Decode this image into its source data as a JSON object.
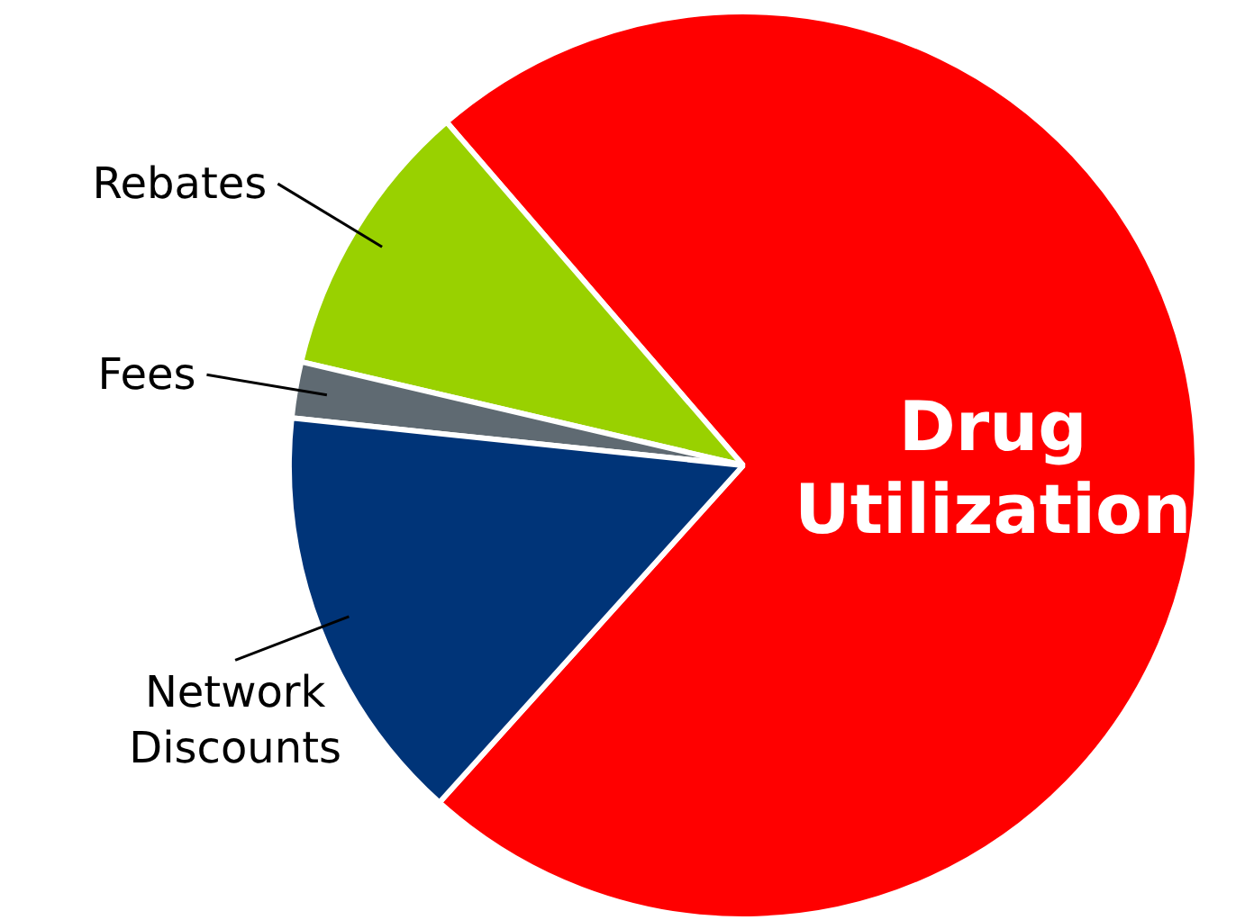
{
  "chart_data": {
    "type": "pie",
    "categories": [
      "Drug Utilization",
      "Rebates",
      "Fees",
      "Network Discounts"
    ],
    "values": [
      73,
      10,
      2,
      15
    ],
    "colors": [
      "#ff0000",
      "#99d100",
      "#5f6a72",
      "#003478"
    ]
  }
}
